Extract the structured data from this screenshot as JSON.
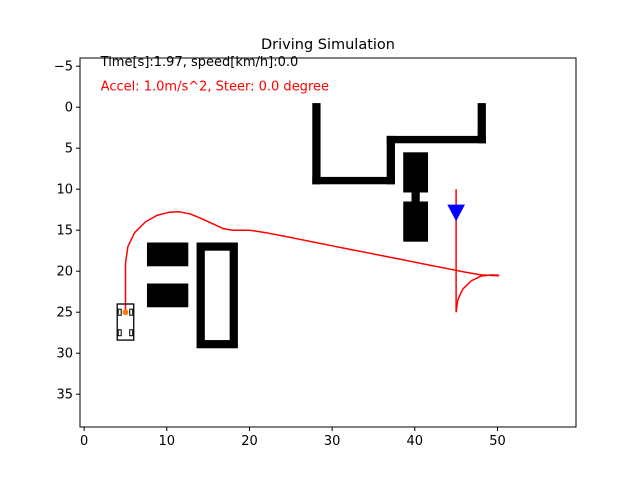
{
  "chart_data": {
    "type": "line",
    "title": "Driving Simulation",
    "xlabel": "",
    "ylabel": "",
    "xlim": [
      -0.5,
      59.5
    ],
    "ylim": [
      -6,
      39
    ],
    "y_inverted": true,
    "x_ticks": [
      0,
      10,
      20,
      30,
      40,
      50
    ],
    "y_ticks": [
      -5,
      0,
      5,
      10,
      15,
      20,
      25,
      30,
      35
    ],
    "grid": false,
    "annotations": [
      {
        "text": "Time[s]:1.97, speed[km/h]:0.0",
        "x": 2,
        "y": -5.5,
        "color": "#000000"
      },
      {
        "text": "Accel: 1.0m/s^2, Steer: 0.0 degree",
        "x": 2,
        "y": -2.5,
        "color": "#ff0000"
      }
    ],
    "obstacles": [
      {
        "name": "wall-left-vertical",
        "x": [
          27.6,
          28.6
        ],
        "y": [
          -0.5,
          9.4
        ]
      },
      {
        "name": "wall-bottom",
        "x": [
          27.6,
          37.6
        ],
        "y": [
          8.5,
          9.4
        ]
      },
      {
        "name": "wall-mid-vertical",
        "x": [
          36.6,
          37.6
        ],
        "y": [
          3.5,
          9.4
        ]
      },
      {
        "name": "wall-top-right",
        "x": [
          36.6,
          48.6
        ],
        "y": [
          3.5,
          4.4
        ]
      },
      {
        "name": "wall-right-vertical",
        "x": [
          47.6,
          48.6
        ],
        "y": [
          -0.5,
          4.4
        ]
      },
      {
        "name": "block-a",
        "x": [
          38.6,
          41.6
        ],
        "y": [
          5.5,
          10.4
        ]
      },
      {
        "name": "block-a-stem",
        "x": [
          39.6,
          40.6
        ],
        "y": [
          10.4,
          11.5
        ]
      },
      {
        "name": "block-b",
        "x": [
          38.6,
          41.6
        ],
        "y": [
          11.5,
          16.4
        ]
      },
      {
        "name": "block-c",
        "x": [
          7.6,
          12.6
        ],
        "y": [
          16.5,
          19.4
        ]
      },
      {
        "name": "block-d",
        "x": [
          7.6,
          12.6
        ],
        "y": [
          21.5,
          24.4
        ]
      },
      {
        "name": "frame-outer",
        "x": [
          13.6,
          18.6
        ],
        "y": [
          16.5,
          29.4
        ]
      },
      {
        "name": "frame-inner",
        "x": [
          14.6,
          17.6
        ],
        "y": [
          17.5,
          28.4
        ],
        "fill": "#ffffff"
      }
    ],
    "planned_path": [
      [
        5,
        25
      ],
      [
        5,
        21
      ],
      [
        5,
        19
      ],
      [
        5.3,
        17
      ],
      [
        6.1,
        15.3
      ],
      [
        7.4,
        14
      ],
      [
        8.8,
        13.2
      ],
      [
        10.3,
        12.8
      ],
      [
        11.5,
        12.75
      ],
      [
        12.8,
        13
      ],
      [
        14,
        13.5
      ],
      [
        15.5,
        14.2
      ],
      [
        16.8,
        14.8
      ],
      [
        18,
        15
      ],
      [
        20,
        15
      ],
      [
        22,
        15.3
      ],
      [
        24,
        15.7
      ],
      [
        26,
        16.1
      ],
      [
        28,
        16.5
      ],
      [
        30,
        16.9
      ],
      [
        32,
        17.3
      ],
      [
        34,
        17.7
      ],
      [
        36,
        18.1
      ],
      [
        38,
        18.5
      ],
      [
        40,
        18.9
      ],
      [
        42,
        19.3
      ],
      [
        44,
        19.7
      ],
      [
        46,
        20.1
      ],
      [
        48,
        20.45
      ],
      [
        50.2,
        20.55
      ]
    ],
    "goal_line": [
      [
        45,
        10
      ],
      [
        45,
        25
      ]
    ],
    "goal_arc": [
      [
        45,
        25
      ],
      [
        45.2,
        23.5
      ],
      [
        45.8,
        22.2
      ],
      [
        46.8,
        21.2
      ],
      [
        48,
        20.6
      ],
      [
        49.3,
        20.45
      ],
      [
        50.2,
        20.5
      ]
    ],
    "goal_marker": {
      "x": 45,
      "y": 12.8,
      "color": "#0000ff"
    },
    "vehicle": {
      "x": 5,
      "y": 25,
      "length": 4.4,
      "width": 2
    }
  }
}
